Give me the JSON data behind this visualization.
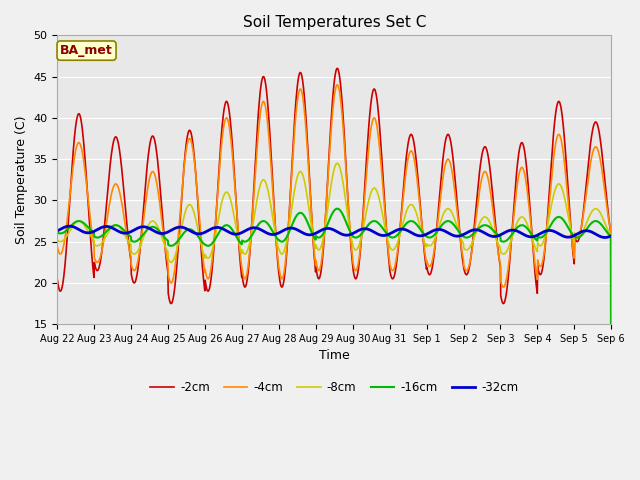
{
  "title": "Soil Temperatures Set C",
  "xlabel": "Time",
  "ylabel": "Soil Temperature (C)",
  "ylim": [
    15,
    50
  ],
  "n_days": 15,
  "background_color": "#f0f0f0",
  "plot_bg_color": "#e8e8e8",
  "label_text": "BA_met",
  "label_bg": "#ffffcc",
  "label_border": "#8B8000",
  "label_text_color": "#8B0000",
  "tick_labels": [
    "Aug 22",
    "Aug 23",
    "Aug 24",
    "Aug 25",
    "Aug 26",
    "Aug 27",
    "Aug 28",
    "Aug 29",
    "Aug 30",
    "Aug 31",
    "Sep 1",
    "Sep 2",
    "Sep 3",
    "Sep 4",
    "Sep 5",
    "Sep 6"
  ],
  "legend_labels": [
    "-2cm",
    "-4cm",
    "-8cm",
    "-16cm",
    "-32cm"
  ],
  "colors": {
    "-2cm": "#cc0000",
    "-4cm": "#ff8800",
    "-8cm": "#cccc00",
    "-16cm": "#00bb00",
    "-32cm": "#0000cc"
  },
  "line_widths": {
    "-2cm": 1.2,
    "-4cm": 1.2,
    "-8cm": 1.2,
    "-16cm": 1.5,
    "-32cm": 2.0
  },
  "peaks_2cm": [
    40.5,
    37.7,
    37.8,
    38.5,
    42.0,
    45.0,
    45.5,
    46.0,
    43.5,
    38.0,
    38.0,
    36.5,
    37.0,
    42.0,
    39.5
  ],
  "troughs_2cm": [
    19.0,
    21.5,
    20.0,
    17.5,
    19.0,
    19.5,
    19.5,
    20.5,
    20.5,
    20.5,
    21.0,
    21.0,
    17.5,
    21.0,
    25.0
  ],
  "peaks_4cm": [
    37.0,
    32.0,
    33.5,
    37.5,
    40.0,
    42.0,
    43.5,
    44.0,
    40.0,
    36.0,
    35.0,
    33.5,
    34.0,
    38.0,
    36.5
  ],
  "troughs_4cm": [
    23.5,
    22.5,
    21.5,
    20.0,
    20.5,
    20.5,
    20.5,
    21.5,
    21.5,
    21.5,
    22.0,
    21.5,
    19.5,
    22.0,
    25.5
  ],
  "peaks_8cm": [
    27.5,
    27.0,
    27.5,
    29.5,
    31.0,
    32.5,
    33.5,
    34.5,
    31.5,
    29.5,
    29.0,
    28.0,
    28.0,
    32.0,
    29.0
  ],
  "troughs_8cm": [
    25.0,
    24.5,
    23.5,
    22.5,
    23.0,
    23.5,
    23.5,
    24.0,
    24.0,
    24.0,
    24.5,
    24.0,
    23.5,
    24.5,
    25.5
  ],
  "peaks_16cm": [
    27.5,
    27.0,
    26.8,
    26.5,
    27.0,
    27.5,
    28.5,
    29.0,
    27.5,
    27.5,
    27.5,
    27.0,
    27.0,
    28.0,
    27.5
  ],
  "troughs_16cm": [
    26.0,
    25.5,
    25.0,
    24.5,
    24.5,
    25.0,
    25.0,
    25.5,
    25.5,
    25.5,
    25.5,
    25.5,
    25.0,
    25.5,
    25.5
  ],
  "mean_32cm": 26.2,
  "amp_32cm": 0.4,
  "yticks": [
    15,
    20,
    25,
    30,
    35,
    40,
    45,
    50
  ]
}
